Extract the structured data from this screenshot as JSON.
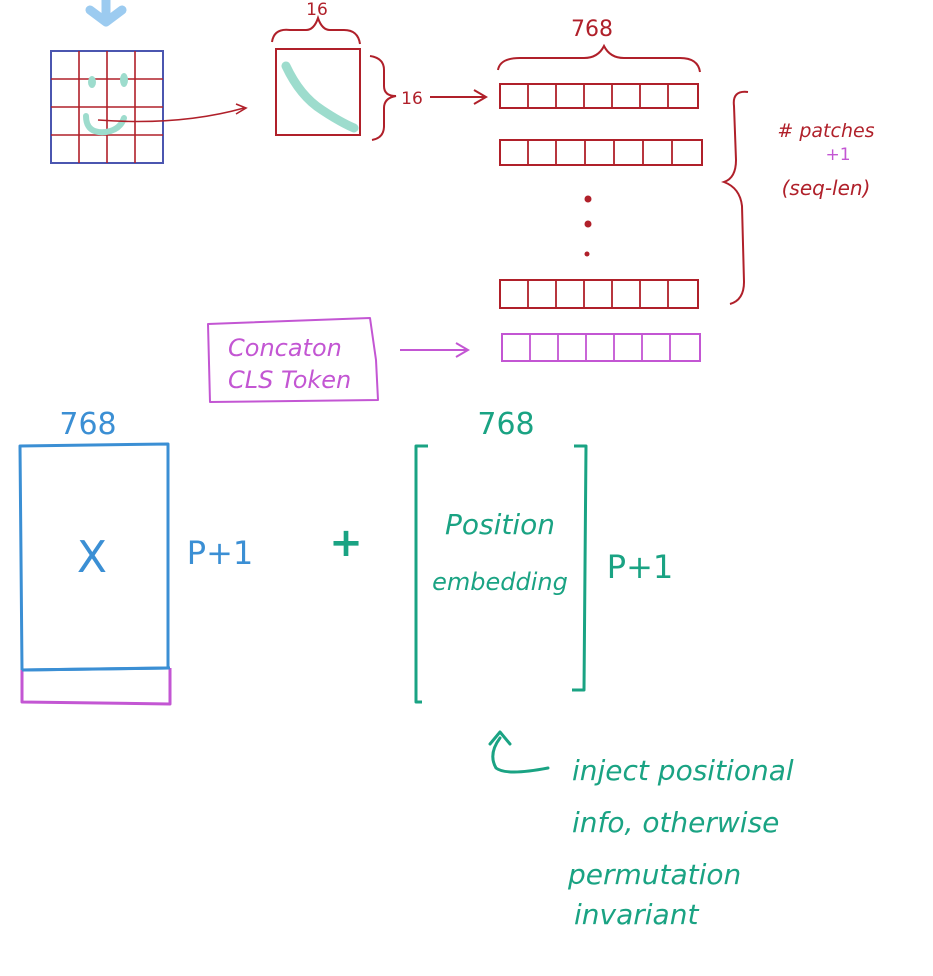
{
  "colors": {
    "red": "#b0202a",
    "blue": "#3b8fd4",
    "teal": "#1aa383",
    "mint": "#9ddccd",
    "magenta": "#c356d3",
    "navy": "#4b56b0",
    "lightblue": "#9ccbf0"
  },
  "patch": {
    "width_label": "16",
    "height_label": "16"
  },
  "sequence": {
    "width_label": "768",
    "count_label_line1": "# patches",
    "count_label_plus": "+1",
    "count_label_line2": "(seq-len)"
  },
  "cls": {
    "line1": "Concaton",
    "line2": "CLS Token"
  },
  "x_matrix": {
    "width_label": "768",
    "symbol": "X",
    "height_label": "P+1"
  },
  "operator": "+",
  "pos_matrix": {
    "width_label": "768",
    "line1": "Position",
    "line2": "embedding",
    "height_label": "P+1"
  },
  "note": {
    "line1": "inject positional",
    "line2": "info, otherwise",
    "line3": "permutation",
    "line4": "invariant"
  }
}
